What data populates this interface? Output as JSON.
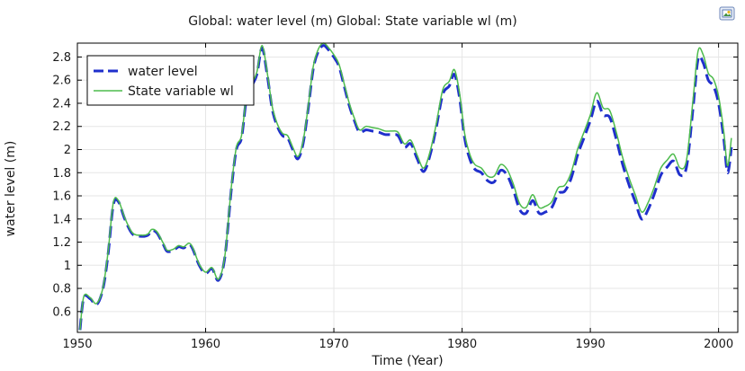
{
  "chart_data": {
    "type": "line",
    "title": "Global: water level (m)  Global: State variable wl (m)",
    "xlabel": "Time (Year)",
    "ylabel": "water level (m)",
    "xlim": [
      1950,
      2001.5
    ],
    "ylim": [
      0.42,
      2.92
    ],
    "xticks": [
      1950,
      1960,
      1970,
      1980,
      1990,
      2000
    ],
    "yticks": [
      0.6,
      0.8,
      1,
      1.2,
      1.4,
      1.6,
      1.8,
      2,
      2.2,
      2.4,
      2.6,
      2.8
    ],
    "grid": true,
    "legend_position": "top-left",
    "series": [
      {
        "name": "water level",
        "color": "#1f2fcc",
        "style": "dashed",
        "points": [
          [
            1950.2,
            0.44
          ],
          [
            1950.5,
            0.72
          ],
          [
            1951.0,
            0.71
          ],
          [
            1951.5,
            0.66
          ],
          [
            1952.0,
            0.8
          ],
          [
            1952.4,
            1.1
          ],
          [
            1952.8,
            1.52
          ],
          [
            1953.2,
            1.55
          ],
          [
            1953.7,
            1.4
          ],
          [
            1954.3,
            1.27
          ],
          [
            1955.0,
            1.25
          ],
          [
            1955.5,
            1.26
          ],
          [
            1955.8,
            1.3
          ],
          [
            1956.2,
            1.28
          ],
          [
            1956.7,
            1.18
          ],
          [
            1957.0,
            1.12
          ],
          [
            1957.5,
            1.13
          ],
          [
            1957.9,
            1.16
          ],
          [
            1958.3,
            1.15
          ],
          [
            1958.7,
            1.18
          ],
          [
            1959.0,
            1.14
          ],
          [
            1959.5,
            1.0
          ],
          [
            1960.0,
            0.93
          ],
          [
            1960.5,
            0.97
          ],
          [
            1961.0,
            0.87
          ],
          [
            1961.5,
            1.07
          ],
          [
            1962.0,
            1.65
          ],
          [
            1962.4,
            2.0
          ],
          [
            1962.8,
            2.1
          ],
          [
            1963.2,
            2.45
          ],
          [
            1963.6,
            2.55
          ],
          [
            1964.0,
            2.65
          ],
          [
            1964.4,
            2.88
          ],
          [
            1964.8,
            2.65
          ],
          [
            1965.2,
            2.35
          ],
          [
            1965.6,
            2.2
          ],
          [
            1966.0,
            2.12
          ],
          [
            1966.4,
            2.1
          ],
          [
            1966.8,
            2.0
          ],
          [
            1967.2,
            1.92
          ],
          [
            1967.6,
            2.05
          ],
          [
            1968.0,
            2.35
          ],
          [
            1968.4,
            2.7
          ],
          [
            1968.8,
            2.85
          ],
          [
            1969.2,
            2.9
          ],
          [
            1969.6,
            2.86
          ],
          [
            1970.0,
            2.8
          ],
          [
            1970.4,
            2.72
          ],
          [
            1970.8,
            2.55
          ],
          [
            1971.2,
            2.38
          ],
          [
            1971.6,
            2.25
          ],
          [
            1972.0,
            2.15
          ],
          [
            1972.5,
            2.17
          ],
          [
            1973.0,
            2.16
          ],
          [
            1973.5,
            2.15
          ],
          [
            1974.0,
            2.13
          ],
          [
            1974.5,
            2.13
          ],
          [
            1975.0,
            2.12
          ],
          [
            1975.5,
            2.02
          ],
          [
            1976.0,
            2.05
          ],
          [
            1976.5,
            1.92
          ],
          [
            1977.0,
            1.81
          ],
          [
            1977.5,
            1.95
          ],
          [
            1978.0,
            2.2
          ],
          [
            1978.5,
            2.48
          ],
          [
            1979.0,
            2.55
          ],
          [
            1979.4,
            2.65
          ],
          [
            1979.8,
            2.45
          ],
          [
            1980.2,
            2.1
          ],
          [
            1980.6,
            1.92
          ],
          [
            1981.0,
            1.83
          ],
          [
            1981.5,
            1.8
          ],
          [
            1982.0,
            1.73
          ],
          [
            1982.5,
            1.72
          ],
          [
            1983.0,
            1.82
          ],
          [
            1983.5,
            1.78
          ],
          [
            1984.0,
            1.65
          ],
          [
            1984.5,
            1.48
          ],
          [
            1985.0,
            1.45
          ],
          [
            1985.5,
            1.56
          ],
          [
            1986.0,
            1.45
          ],
          [
            1986.5,
            1.46
          ],
          [
            1987.0,
            1.5
          ],
          [
            1987.5,
            1.62
          ],
          [
            1988.0,
            1.64
          ],
          [
            1988.5,
            1.75
          ],
          [
            1989.0,
            1.95
          ],
          [
            1989.5,
            2.1
          ],
          [
            1990.0,
            2.25
          ],
          [
            1990.5,
            2.42
          ],
          [
            1991.0,
            2.3
          ],
          [
            1991.5,
            2.28
          ],
          [
            1992.0,
            2.1
          ],
          [
            1992.5,
            1.88
          ],
          [
            1993.0,
            1.7
          ],
          [
            1993.5,
            1.55
          ],
          [
            1994.0,
            1.4
          ],
          [
            1994.5,
            1.48
          ],
          [
            1995.0,
            1.62
          ],
          [
            1995.5,
            1.78
          ],
          [
            1996.0,
            1.85
          ],
          [
            1996.5,
            1.9
          ],
          [
            1997.0,
            1.78
          ],
          [
            1997.5,
            1.85
          ],
          [
            1998.0,
            2.35
          ],
          [
            1998.4,
            2.78
          ],
          [
            1998.8,
            2.75
          ],
          [
            1999.2,
            2.6
          ],
          [
            1999.6,
            2.55
          ],
          [
            2000.0,
            2.4
          ],
          [
            2000.4,
            2.1
          ],
          [
            2000.7,
            1.8
          ],
          [
            2001.0,
            2.02
          ]
        ]
      },
      {
        "name": "State variable wl",
        "color": "#4dbb4d",
        "style": "solid",
        "points": [
          [
            1950.2,
            0.44
          ],
          [
            1950.5,
            0.73
          ],
          [
            1951.0,
            0.72
          ],
          [
            1951.5,
            0.67
          ],
          [
            1952.0,
            0.81
          ],
          [
            1952.4,
            1.12
          ],
          [
            1952.8,
            1.54
          ],
          [
            1953.2,
            1.56
          ],
          [
            1953.7,
            1.41
          ],
          [
            1954.3,
            1.28
          ],
          [
            1955.0,
            1.26
          ],
          [
            1955.5,
            1.27
          ],
          [
            1955.8,
            1.31
          ],
          [
            1956.2,
            1.29
          ],
          [
            1956.7,
            1.19
          ],
          [
            1957.0,
            1.13
          ],
          [
            1957.5,
            1.14
          ],
          [
            1957.9,
            1.17
          ],
          [
            1958.3,
            1.16
          ],
          [
            1958.7,
            1.19
          ],
          [
            1959.0,
            1.15
          ],
          [
            1959.5,
            1.01
          ],
          [
            1960.0,
            0.94
          ],
          [
            1960.5,
            0.98
          ],
          [
            1961.0,
            0.88
          ],
          [
            1961.5,
            1.08
          ],
          [
            1962.0,
            1.67
          ],
          [
            1962.4,
            2.02
          ],
          [
            1962.8,
            2.12
          ],
          [
            1963.2,
            2.47
          ],
          [
            1963.6,
            2.57
          ],
          [
            1964.0,
            2.67
          ],
          [
            1964.4,
            2.9
          ],
          [
            1964.8,
            2.67
          ],
          [
            1965.2,
            2.37
          ],
          [
            1965.6,
            2.22
          ],
          [
            1966.0,
            2.14
          ],
          [
            1966.4,
            2.12
          ],
          [
            1966.8,
            2.02
          ],
          [
            1967.2,
            1.94
          ],
          [
            1967.6,
            2.07
          ],
          [
            1968.0,
            2.37
          ],
          [
            1968.4,
            2.72
          ],
          [
            1968.8,
            2.87
          ],
          [
            1969.2,
            2.92
          ],
          [
            1969.6,
            2.88
          ],
          [
            1970.0,
            2.82
          ],
          [
            1970.4,
            2.74
          ],
          [
            1970.8,
            2.57
          ],
          [
            1971.2,
            2.4
          ],
          [
            1971.6,
            2.27
          ],
          [
            1972.0,
            2.17
          ],
          [
            1972.5,
            2.2
          ],
          [
            1973.0,
            2.19
          ],
          [
            1973.5,
            2.18
          ],
          [
            1974.0,
            2.16
          ],
          [
            1974.5,
            2.16
          ],
          [
            1975.0,
            2.15
          ],
          [
            1975.5,
            2.05
          ],
          [
            1976.0,
            2.08
          ],
          [
            1976.5,
            1.95
          ],
          [
            1977.0,
            1.84
          ],
          [
            1977.5,
            1.98
          ],
          [
            1978.0,
            2.23
          ],
          [
            1978.5,
            2.52
          ],
          [
            1979.0,
            2.59
          ],
          [
            1979.4,
            2.69
          ],
          [
            1979.8,
            2.49
          ],
          [
            1980.2,
            2.14
          ],
          [
            1980.6,
            1.96
          ],
          [
            1981.0,
            1.87
          ],
          [
            1981.5,
            1.84
          ],
          [
            1982.0,
            1.77
          ],
          [
            1982.5,
            1.77
          ],
          [
            1983.0,
            1.87
          ],
          [
            1983.5,
            1.83
          ],
          [
            1984.0,
            1.7
          ],
          [
            1984.5,
            1.53
          ],
          [
            1985.0,
            1.5
          ],
          [
            1985.5,
            1.61
          ],
          [
            1986.0,
            1.5
          ],
          [
            1986.5,
            1.51
          ],
          [
            1987.0,
            1.55
          ],
          [
            1987.5,
            1.67
          ],
          [
            1988.0,
            1.69
          ],
          [
            1988.5,
            1.8
          ],
          [
            1989.0,
            2.0
          ],
          [
            1989.5,
            2.15
          ],
          [
            1990.0,
            2.3
          ],
          [
            1990.5,
            2.49
          ],
          [
            1991.0,
            2.36
          ],
          [
            1991.5,
            2.34
          ],
          [
            1992.0,
            2.16
          ],
          [
            1992.5,
            1.94
          ],
          [
            1993.0,
            1.76
          ],
          [
            1993.5,
            1.61
          ],
          [
            1994.0,
            1.46
          ],
          [
            1994.5,
            1.54
          ],
          [
            1995.0,
            1.68
          ],
          [
            1995.5,
            1.84
          ],
          [
            1996.0,
            1.91
          ],
          [
            1996.5,
            1.96
          ],
          [
            1997.0,
            1.84
          ],
          [
            1997.5,
            1.91
          ],
          [
            1998.0,
            2.42
          ],
          [
            1998.4,
            2.85
          ],
          [
            1998.8,
            2.82
          ],
          [
            1999.2,
            2.66
          ],
          [
            1999.6,
            2.61
          ],
          [
            2000.0,
            2.46
          ],
          [
            2000.4,
            2.16
          ],
          [
            2000.7,
            1.86
          ],
          [
            2001.0,
            2.1
          ]
        ]
      }
    ]
  },
  "toolbar": {
    "icon": "export-image-icon"
  }
}
